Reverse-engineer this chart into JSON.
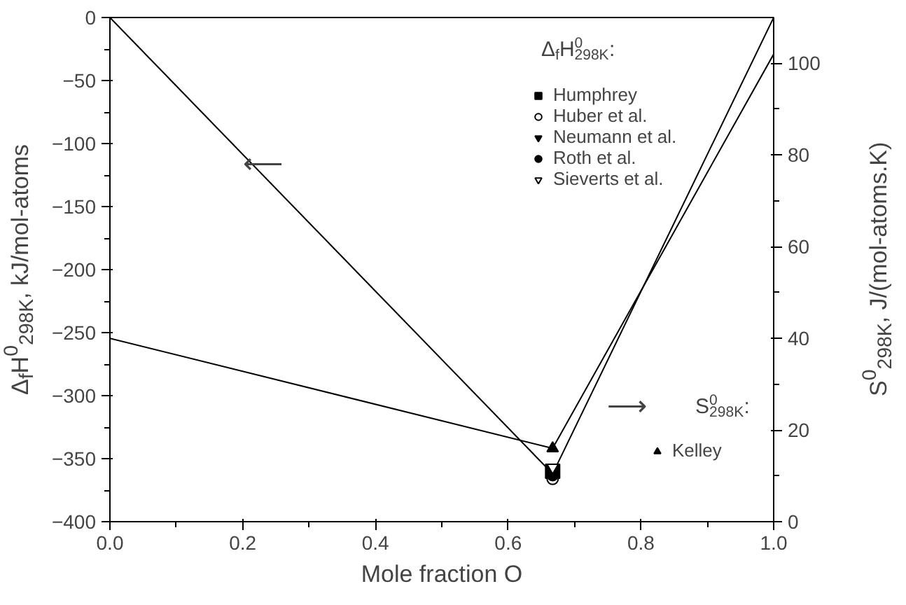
{
  "chart_data": {
    "type": "line",
    "xlabel": "Mole fraction O",
    "ylabel": "Δ$_{f}$H$^{0}$$_{298K}$, kJ/mol-atoms",
    "y2label": "S$^{0}$$_{298K}$, J/(mol-atoms.K)",
    "legend_title": "Δ$_{f}$H$^{0}$$_{298K}$:",
    "xlim": [
      0,
      1
    ],
    "xticks": [
      {
        "value": 0,
        "label": "0.0"
      },
      0.2,
      0.4,
      0.6,
      0.8,
      {
        "value": 1,
        "label": "1.0"
      }
    ],
    "ylim": [
      -400,
      0
    ],
    "yticks": [
      -400,
      -350,
      -300,
      -250,
      -200,
      -150,
      -100,
      -50,
      0
    ],
    "y2lim": [
      0,
      110
    ],
    "y2ticks": [
      0,
      20,
      40,
      60,
      80,
      100
    ],
    "legend": "right",
    "grid": false,
    "series": [
      {
        "color": "#000000",
        "marker": "none",
        "x": [
          0,
          0.667,
          1
        ],
        "values": [
          0,
          -362,
          0
        ]
      },
      {
        "color": "#000000",
        "marker": "none",
        "axis": "y2",
        "x": [
          0,
          0.667,
          1
        ],
        "values": [
          40,
          16,
          102
        ]
      },
      {
        "type": "scatter",
        "name": "Humphrey",
        "color": "#000000",
        "marker": "square",
        "x": [
          0.667
        ],
        "values": [
          -360
        ]
      },
      {
        "type": "scatter",
        "name": "Huber et al.",
        "color": "#ffffff",
        "marker": "circle",
        "x": [
          0.667
        ],
        "values": [
          -366
        ]
      },
      {
        "type": "scatter",
        "name": "Neumann et al.",
        "color": "#000000"
      },
      {
        "type": "scatter",
        "name": "Roth et al.",
        "color": "#000000",
        "marker": "circle",
        "x": [
          0.667
        ],
        "values": [
          -363
        ]
      },
      {
        "type": "scatter",
        "name": "Sieverts et al.",
        "color": "#ffffff",
        "x": [
          0.667
        ],
        "values": [
          -357
        ]
      },
      {
        "type": "scatter",
        "name": "Kelley",
        "color": "#000000",
        "marker": "triangle",
        "axis": "y2",
        "x": [
          0.667
        ],
        "values": [
          16
        ]
      }
    ],
    "annotations": [
      "⟵",
      "⟶",
      "S$^{0}$$_{298K}$:"
    ]
  }
}
